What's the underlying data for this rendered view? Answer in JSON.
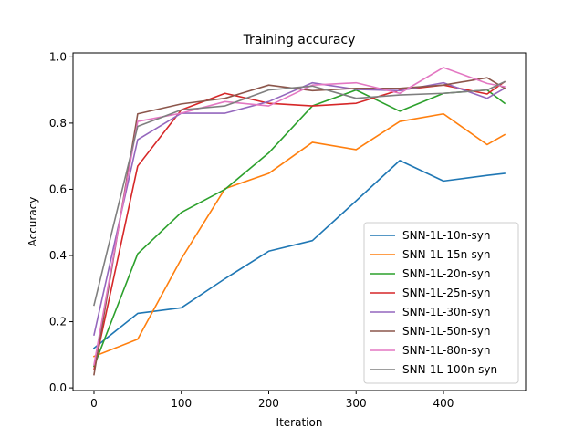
{
  "chart_data": {
    "type": "line",
    "title": "Training accuracy",
    "xlabel": "Iteration",
    "ylabel": "Accuracy",
    "xlim": [
      -24,
      494
    ],
    "ylim": [
      -0.008,
      1.012
    ],
    "xticks": [
      0,
      100,
      200,
      300,
      400
    ],
    "yticks": [
      0.0,
      0.2,
      0.4,
      0.6,
      0.8,
      1.0
    ],
    "xtick_labels": [
      "0",
      "100",
      "200",
      "300",
      "400"
    ],
    "ytick_labels": [
      "0.0",
      "0.2",
      "0.4",
      "0.6",
      "0.8",
      "1.0"
    ],
    "grid": false,
    "legend_position": "lower-right",
    "x": [
      0,
      50,
      100,
      150,
      200,
      250,
      300,
      350,
      400,
      450,
      470
    ],
    "series": [
      {
        "name": "SNN-1L-10n-syn",
        "color": "#1f77b4",
        "values": [
          0.12,
          0.225,
          0.242,
          0.33,
          0.413,
          0.445,
          0.565,
          0.687,
          0.625,
          0.642,
          0.648
        ]
      },
      {
        "name": "SNN-1L-15n-syn",
        "color": "#ff7f0e",
        "values": [
          0.095,
          0.147,
          0.39,
          0.602,
          0.648,
          0.742,
          0.72,
          0.805,
          0.828,
          0.735,
          0.765
        ]
      },
      {
        "name": "SNN-1L-20n-syn",
        "color": "#2ca02c",
        "values": [
          0.065,
          0.405,
          0.53,
          0.6,
          0.71,
          0.852,
          0.9,
          0.836,
          0.89,
          0.9,
          0.86
        ]
      },
      {
        "name": "SNN-1L-25n-syn",
        "color": "#d62728",
        "values": [
          0.055,
          0.67,
          0.84,
          0.89,
          0.86,
          0.852,
          0.86,
          0.9,
          0.915,
          0.888,
          0.925
        ]
      },
      {
        "name": "SNN-1L-30n-syn",
        "color": "#9467bd",
        "values": [
          0.16,
          0.75,
          0.83,
          0.83,
          0.865,
          0.922,
          0.902,
          0.898,
          0.922,
          0.875,
          0.905
        ]
      },
      {
        "name": "SNN-1L-50n-syn",
        "color": "#8c564b",
        "values": [
          0.04,
          0.828,
          0.858,
          0.875,
          0.915,
          0.898,
          0.905,
          0.905,
          0.915,
          0.937,
          0.905
        ]
      },
      {
        "name": "SNN-1L-80n-syn",
        "color": "#e377c2",
        "values": [
          0.07,
          0.805,
          0.83,
          0.865,
          0.852,
          0.915,
          0.922,
          0.89,
          0.968,
          0.92,
          0.91
        ]
      },
      {
        "name": "SNN-1L-100n-syn",
        "color": "#7f7f7f",
        "values": [
          0.25,
          0.79,
          0.84,
          0.852,
          0.9,
          0.912,
          0.875,
          0.885,
          0.89,
          0.9,
          0.925
        ]
      }
    ]
  }
}
